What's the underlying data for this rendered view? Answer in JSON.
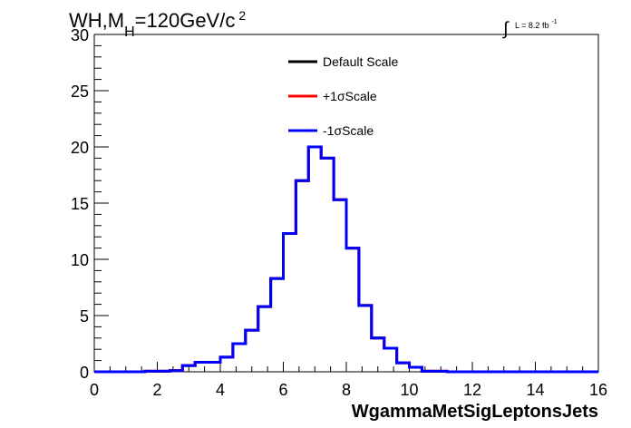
{
  "chart_data": {
    "type": "line",
    "title_parts": {
      "main": "WH,M",
      "sub": "H",
      "rest": "=120GeV/c",
      "sup": "2"
    },
    "lumi_parts": {
      "integral": "∫",
      "text": "L = 8.2 fb",
      "sup": "-1"
    },
    "xlabel": "WgammaMetSigLeptonsJets",
    "ylabel": "",
    "xlim": [
      0,
      16
    ],
    "ylim": [
      0,
      30
    ],
    "x_ticks": [
      0,
      2,
      4,
      6,
      8,
      10,
      12,
      14,
      16
    ],
    "y_ticks": [
      0,
      5,
      10,
      15,
      20,
      25,
      30
    ],
    "x_tick_labels": [
      "0",
      "2",
      "4",
      "6",
      "8",
      "10",
      "12",
      "14",
      "16"
    ],
    "y_tick_labels": [
      "0",
      "5",
      "10",
      "15",
      "20",
      "25",
      "30"
    ],
    "grid": false,
    "legend_position": "top-center",
    "bin_width": 0.4,
    "bin_edges_start": 0,
    "series": [
      {
        "name": "Default Scale",
        "color": "#000000",
        "values": [
          0,
          0,
          0,
          0,
          0.05,
          0.05,
          0.1,
          0.55,
          0.85,
          0.85,
          1.3,
          2.5,
          3.7,
          5.8,
          8.3,
          12.3,
          17,
          20,
          19,
          15.3,
          11,
          5.9,
          3,
          2.1,
          0.8,
          0.4,
          0.05,
          0.05,
          0,
          0,
          0,
          0,
          0,
          0,
          0,
          0,
          0,
          0,
          0,
          0
        ]
      },
      {
        "name": "+1σScale",
        "color": "#ff0000",
        "values": [
          0,
          0,
          0,
          0,
          0.05,
          0.05,
          0.1,
          0.55,
          0.85,
          0.85,
          1.3,
          2.5,
          3.7,
          5.8,
          8.3,
          12.3,
          17,
          20,
          19,
          15.3,
          11,
          5.9,
          3,
          2.1,
          0.8,
          0.4,
          0.05,
          0.05,
          0,
          0,
          0,
          0,
          0,
          0,
          0,
          0,
          0,
          0,
          0,
          0
        ]
      },
      {
        "name": "-1σScale",
        "color": "#0000ff",
        "values": [
          0,
          0,
          0,
          0,
          0.05,
          0.05,
          0.1,
          0.55,
          0.85,
          0.85,
          1.3,
          2.5,
          3.7,
          5.8,
          8.3,
          12.3,
          17,
          20,
          19,
          15.3,
          11,
          5.9,
          3,
          2.1,
          0.8,
          0.4,
          0.05,
          0.05,
          0,
          0,
          0,
          0,
          0,
          0,
          0,
          0,
          0,
          0,
          0,
          0
        ]
      }
    ]
  }
}
